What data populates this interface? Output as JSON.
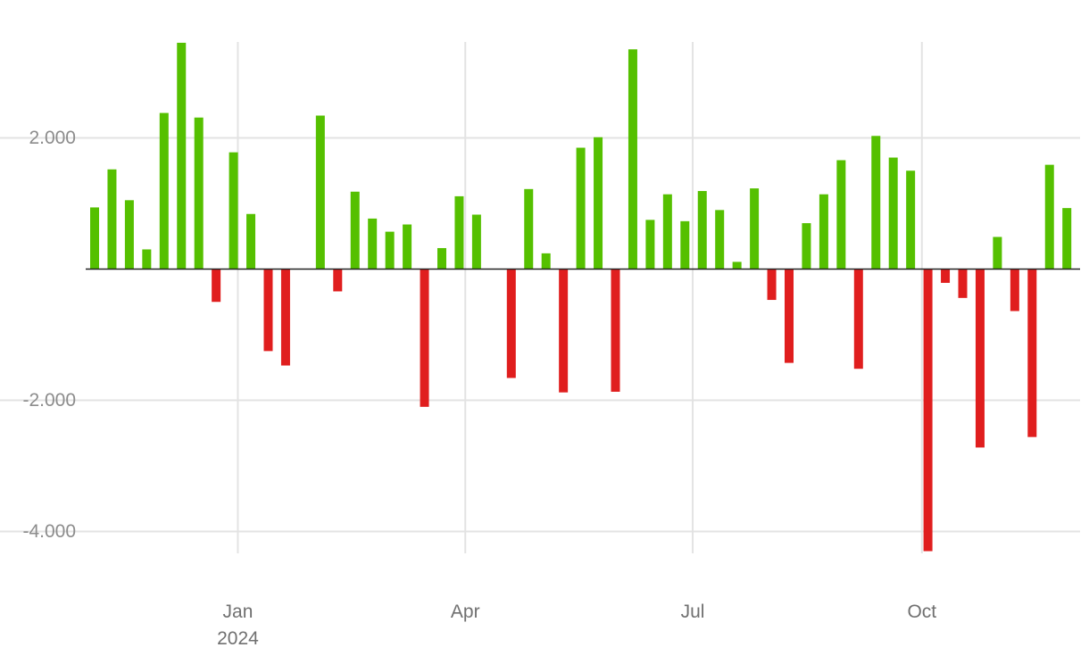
{
  "chart_data": {
    "type": "bar",
    "title": "",
    "xlabel": "",
    "ylabel": "",
    "ylim": [
      -4300,
      3450
    ],
    "y_ticks": [
      {
        "value": 2000,
        "label": "2.000"
      },
      {
        "value": -2000,
        "label": "-2.000"
      },
      {
        "value": -4000,
        "label": "-4.000"
      }
    ],
    "x_ticks": [
      {
        "index": 8.25,
        "label": "Jan",
        "sublabel": "2024"
      },
      {
        "index": 21.35,
        "label": "Apr",
        "sublabel": ""
      },
      {
        "index": 34.45,
        "label": "Jul",
        "sublabel": ""
      },
      {
        "index": 47.65,
        "label": "Oct",
        "sublabel": ""
      }
    ],
    "grid": true,
    "colors": {
      "positive": "#55c000",
      "negative": "#e01e1e",
      "grid": "#e3e3e3",
      "zero_line": "#222222"
    },
    "values": [
      940,
      1520,
      1050,
      300,
      2380,
      3450,
      2310,
      -500,
      1780,
      840,
      -1250,
      -1470,
      0,
      2340,
      -340,
      1180,
      770,
      570,
      680,
      -2100,
      320,
      1110,
      830,
      0,
      -1660,
      1220,
      240,
      -1880,
      1850,
      2010,
      -1870,
      3350,
      750,
      1140,
      730,
      1190,
      900,
      110,
      1230,
      -470,
      -1430,
      700,
      1140,
      1660,
      -1520,
      2030,
      1700,
      1500,
      -4300,
      -210,
      -440,
      -2720,
      490,
      -640,
      -2560,
      1590,
      930
    ]
  }
}
